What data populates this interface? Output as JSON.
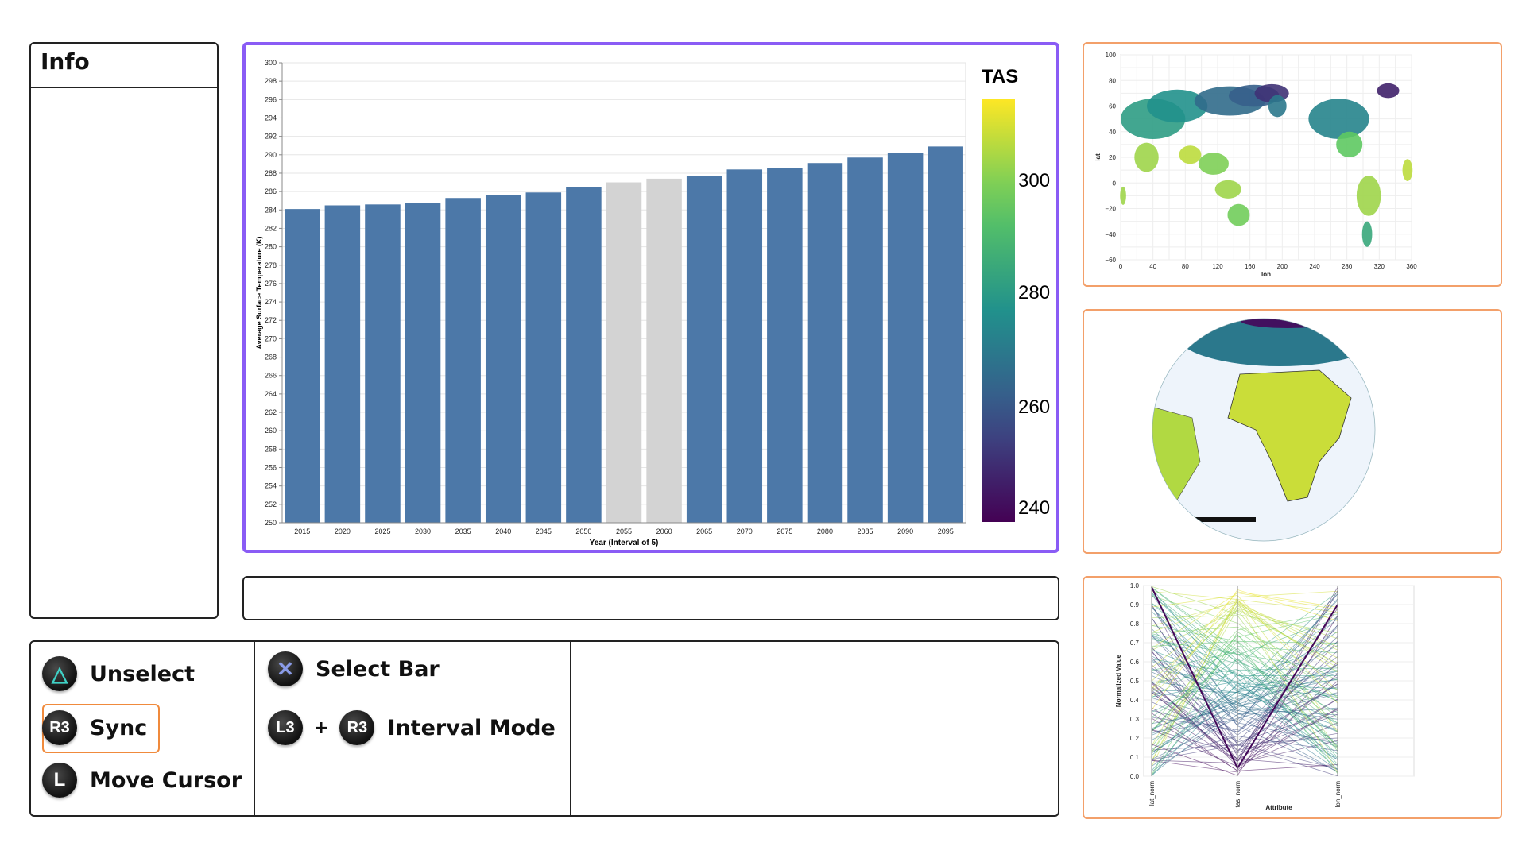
{
  "info": {
    "title": "Info"
  },
  "bar_chart": {
    "xlabel": "Year (Interval of 5)",
    "ylabel": "Average Surface Temperature (K)",
    "colorbar": {
      "title": "TAS",
      "ticks": [
        "300",
        "280",
        "260",
        "240"
      ]
    },
    "colors": {
      "bar": "#4c78a8",
      "highlight": "#d3d3d3",
      "border": "#8a5cf5"
    }
  },
  "chart_data": [
    {
      "type": "bar",
      "categories": [
        "2015",
        "2020",
        "2025",
        "2030",
        "2035",
        "2040",
        "2045",
        "2050",
        "2055",
        "2060",
        "2065",
        "2070",
        "2075",
        "2080",
        "2085",
        "2090",
        "2095"
      ],
      "values": [
        284.1,
        284.5,
        284.6,
        284.8,
        285.3,
        285.6,
        285.9,
        286.5,
        287.0,
        287.4,
        287.7,
        288.4,
        288.6,
        289.1,
        289.7,
        290.2,
        290.9
      ],
      "highlighted": [
        "2055",
        "2060"
      ],
      "xlabel": "Year (Interval of 5)",
      "ylabel": "Average Surface Temperature (K)",
      "ylim": [
        250,
        300
      ],
      "yticks": [
        250,
        252,
        254,
        256,
        258,
        260,
        262,
        264,
        266,
        268,
        270,
        272,
        274,
        276,
        278,
        280,
        282,
        284,
        286,
        288,
        290,
        292,
        294,
        296,
        298,
        300
      ],
      "grid": true
    },
    {
      "type": "scatter",
      "xlabel": "lon",
      "ylabel": "lat",
      "xticks": [
        0,
        40,
        80,
        120,
        160,
        200,
        240,
        280,
        320,
        360
      ],
      "yticks": [
        -60,
        -40,
        -20,
        0,
        20,
        40,
        60,
        80,
        100
      ],
      "xlim": [
        0,
        360
      ],
      "ylim": [
        -60,
        100
      ]
    },
    {
      "type": "line",
      "xlabel": "Attribute",
      "ylabel": "Normalized Value",
      "categories": [
        "lat_norm",
        "tas_norm",
        "lon_norm"
      ],
      "ylim": [
        0,
        1
      ],
      "yticks": [
        "0.0",
        "0.1",
        "0.2",
        "0.3",
        "0.4",
        "0.5",
        "0.6",
        "0.7",
        "0.8",
        "0.9",
        "1.0"
      ]
    }
  ],
  "controls": {
    "unselect": {
      "button": "△",
      "label": "Unselect"
    },
    "sync": {
      "button": "R3",
      "label": "Sync"
    },
    "move": {
      "button": "L",
      "label": "Move Cursor"
    },
    "select_bar": {
      "button": "✕",
      "label": "Select Bar"
    },
    "interval": {
      "button1": "L3",
      "plus": "+",
      "button2": "R3",
      "label": "Interval Mode"
    },
    "colors": {
      "highlight": "#f08a3c"
    }
  },
  "map": {
    "xlabel": "lon",
    "ylabel": "lat",
    "xticks": [
      "0",
      "40",
      "80",
      "120",
      "160",
      "200",
      "240",
      "280",
      "320",
      "360"
    ],
    "yticks": [
      "100",
      "80",
      "60",
      "40",
      "20",
      "0",
      "−20",
      "−40",
      "−60"
    ]
  },
  "parallel": {
    "xlabel": "Attribute",
    "ylabel": "Normalized Value",
    "axes": [
      "lat_norm",
      "tas_norm",
      "lon_norm"
    ],
    "yticks": [
      "1.0",
      "0.9",
      "0.8",
      "0.7",
      "0.6",
      "0.5",
      "0.4",
      "0.3",
      "0.2",
      "0.1",
      "0.0"
    ]
  }
}
